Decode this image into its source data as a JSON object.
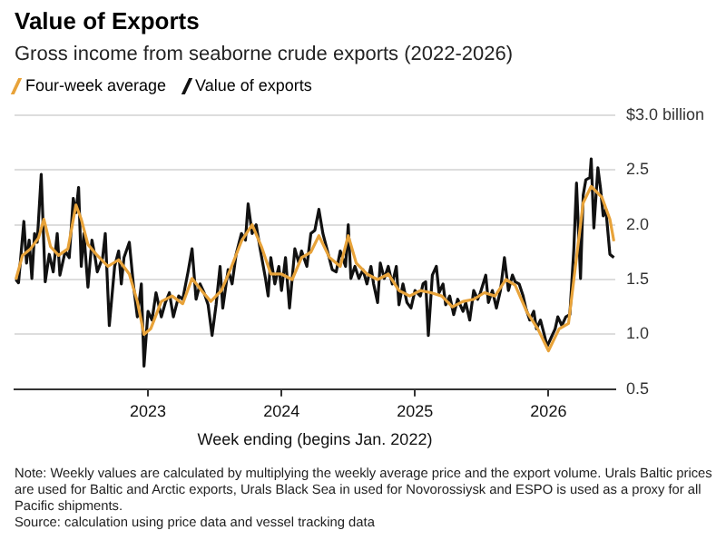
{
  "chart_data": {
    "type": "line",
    "title": "Value of Exports",
    "subtitle": "Gross income from seaborne crude exports (2022-2026)",
    "xlabel": "Week ending (begins Jan. 2022)",
    "legend": "top left",
    "grid": "y",
    "marker": "none",
    "xlim": [
      2022,
      2026.5
    ],
    "xticks": [
      2023,
      2024,
      2025,
      2026
    ],
    "ylim": [
      0.5,
      3.0
    ],
    "yticks": [
      0.5,
      {
        "value": 1.0,
        "label": "1.0"
      },
      1.5,
      {
        "value": 2.0,
        "label": "2.0"
      },
      2.5,
      {
        "value": 3.0,
        "label": "$3.0 billion"
      }
    ],
    "series": [
      {
        "name": "Value of exports",
        "color": "#111111",
        "x": [
          2022.01,
          2022.03,
          2022.07,
          2022.09,
          2022.11,
          2022.13,
          2022.15,
          2022.17,
          2022.2,
          2022.23,
          2022.26,
          2022.29,
          2022.32,
          2022.34,
          2022.38,
          2022.41,
          2022.44,
          2022.46,
          2022.48,
          2022.5,
          2022.52,
          2022.55,
          2022.58,
          2022.6,
          2022.62,
          2022.66,
          2022.68,
          2022.71,
          2022.75,
          2022.78,
          2022.8,
          2022.82,
          2022.86,
          2022.89,
          2022.92,
          2022.95,
          2022.97,
          2023.0,
          2023.03,
          2023.06,
          2023.1,
          2023.13,
          2023.16,
          2023.19,
          2023.23,
          2023.26,
          2023.3,
          2023.33,
          2023.36,
          2023.39,
          2023.42,
          2023.45,
          2023.48,
          2023.51,
          2023.54,
          2023.56,
          2023.6,
          2023.63,
          2023.66,
          2023.7,
          2023.73,
          2023.75,
          2023.78,
          2023.81,
          2023.84,
          2023.88,
          2023.9,
          2023.92,
          2023.95,
          2023.98,
          2024.0,
          2024.03,
          2024.06,
          2024.1,
          2024.13,
          2024.15,
          2024.19,
          2024.22,
          2024.25,
          2024.28,
          2024.31,
          2024.34,
          2024.38,
          2024.41,
          2024.44,
          2024.48,
          2024.5,
          2024.52,
          2024.55,
          2024.58,
          2024.61,
          2024.64,
          2024.67,
          2024.69,
          2024.72,
          2024.74,
          2024.77,
          2024.8,
          2024.83,
          2024.86,
          2024.88,
          2024.91,
          2024.94,
          2024.97,
          2025.0,
          2025.04,
          2025.06,
          2025.08,
          2025.1,
          2025.13,
          2025.16,
          2025.18,
          2025.21,
          2025.23,
          2025.26,
          2025.29,
          2025.32,
          2025.36,
          2025.38,
          2025.41,
          2025.44,
          2025.47,
          2025.49,
          2025.53,
          2025.55,
          2025.58,
          2025.61,
          2025.64,
          2025.67,
          2025.7,
          2025.73,
          2025.75,
          2025.78,
          2025.81,
          2025.83,
          2025.86,
          2025.89,
          2025.91,
          2025.94,
          2025.97,
          2025.99,
          2026.02,
          2026.05,
          2026.07,
          2026.1,
          2026.13,
          2026.16,
          2026.19,
          2026.21,
          2026.24,
          2026.26,
          2026.28,
          2026.31,
          2026.32,
          2026.34,
          2026.37,
          2026.39,
          2026.41,
          2026.43,
          2026.46,
          2026.49
        ],
        "values": [
          1.5,
          1.47,
          2.03,
          1.65,
          1.86,
          1.51,
          1.92,
          1.84,
          2.46,
          1.48,
          1.73,
          1.57,
          1.92,
          1.54,
          1.76,
          1.7,
          2.24,
          2.11,
          2.34,
          1.62,
          1.92,
          1.43,
          1.86,
          1.73,
          1.57,
          1.7,
          1.92,
          1.08,
          1.62,
          1.76,
          1.46,
          1.7,
          1.84,
          1.46,
          1.16,
          1.46,
          0.71,
          1.21,
          1.13,
          1.38,
          1.16,
          1.29,
          1.38,
          1.16,
          1.35,
          1.32,
          1.57,
          1.78,
          1.32,
          1.46,
          1.38,
          1.27,
          0.99,
          1.27,
          1.62,
          1.24,
          1.59,
          1.46,
          1.73,
          1.92,
          1.86,
          2.19,
          1.92,
          2.0,
          1.78,
          1.51,
          1.35,
          1.7,
          1.46,
          1.62,
          1.4,
          1.7,
          1.24,
          1.78,
          1.65,
          1.76,
          1.62,
          1.92,
          1.95,
          2.14,
          1.92,
          1.78,
          1.59,
          1.57,
          1.76,
          1.62,
          2.0,
          1.51,
          1.62,
          1.51,
          1.59,
          1.46,
          1.62,
          1.46,
          1.29,
          1.65,
          1.51,
          1.62,
          1.46,
          1.62,
          1.27,
          1.46,
          1.29,
          1.24,
          1.4,
          1.35,
          1.46,
          1.48,
          0.99,
          1.54,
          1.62,
          1.38,
          1.46,
          1.27,
          1.35,
          1.18,
          1.32,
          1.21,
          1.29,
          1.13,
          1.4,
          1.32,
          1.38,
          1.54,
          1.29,
          1.4,
          1.24,
          1.4,
          1.7,
          1.4,
          1.54,
          1.48,
          1.46,
          1.35,
          1.24,
          1.13,
          1.21,
          1.05,
          1.13,
          0.99,
          0.89,
          0.97,
          1.05,
          1.16,
          1.08,
          1.16,
          1.18,
          1.78,
          2.38,
          1.51,
          2.27,
          2.41,
          2.43,
          2.6,
          1.97,
          2.52,
          2.33,
          2.08,
          2.14,
          1.73,
          1.7
        ]
      },
      {
        "name": "Four-week average",
        "color": "#e8a33a",
        "x": [
          2022.01,
          2022.06,
          2022.12,
          2022.18,
          2022.22,
          2022.27,
          2022.33,
          2022.4,
          2022.46,
          2022.5,
          2022.55,
          2022.62,
          2022.7,
          2022.78,
          2022.86,
          2022.92,
          2022.97,
          2023.02,
          2023.1,
          2023.18,
          2023.26,
          2023.33,
          2023.4,
          2023.47,
          2023.55,
          2023.62,
          2023.7,
          2023.78,
          2023.85,
          2023.92,
          2024.0,
          2024.08,
          2024.15,
          2024.22,
          2024.28,
          2024.36,
          2024.44,
          2024.5,
          2024.56,
          2024.64,
          2024.72,
          2024.8,
          2024.88,
          2024.96,
          2025.04,
          2025.12,
          2025.2,
          2025.28,
          2025.36,
          2025.44,
          2025.52,
          2025.6,
          2025.68,
          2025.75,
          2025.84,
          2025.92,
          2026.0,
          2026.08,
          2026.15,
          2026.2,
          2026.26,
          2026.32,
          2026.4,
          2026.46,
          2026.49
        ],
        "values": [
          1.5,
          1.72,
          1.78,
          1.88,
          2.05,
          1.8,
          1.72,
          1.78,
          2.18,
          2.05,
          1.82,
          1.72,
          1.62,
          1.68,
          1.55,
          1.3,
          1.0,
          1.05,
          1.3,
          1.35,
          1.28,
          1.51,
          1.4,
          1.3,
          1.4,
          1.6,
          1.85,
          2.0,
          1.8,
          1.55,
          1.55,
          1.5,
          1.7,
          1.75,
          1.9,
          1.7,
          1.62,
          1.9,
          1.65,
          1.55,
          1.5,
          1.55,
          1.4,
          1.35,
          1.4,
          1.38,
          1.35,
          1.25,
          1.3,
          1.32,
          1.38,
          1.35,
          1.5,
          1.45,
          1.2,
          1.05,
          0.85,
          1.05,
          1.1,
          1.6,
          2.2,
          2.35,
          2.25,
          2.05,
          1.85
        ]
      }
    ],
    "annotations": [
      "Note: Weekly values are calculated by multiplying the weekly average price and the export volume. Urals Baltic prices are used for Baltic and Arctic exports, Urals Black Sea in used for Novorossiysk and ESPO is used as a proxy for all Pacific shipments.",
      "Source: calculation using price data and vessel tracking data"
    ]
  }
}
